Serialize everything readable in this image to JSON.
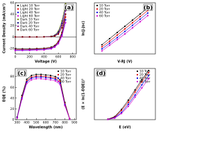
{
  "chart_data": [
    {
      "type": "line",
      "label": "(a)",
      "xlabel": "Voltage (V)",
      "ylabel": "Current Density (mA/cm²)",
      "x": [
        0,
        100,
        200,
        300,
        400,
        500,
        550,
        600,
        650,
        700
      ],
      "xlim": [
        0,
        850
      ],
      "xticks": [
        0,
        200,
        400,
        600,
        800
      ],
      "ylim": [
        -30,
        60
      ],
      "yticks": [
        -20,
        0,
        20,
        40,
        60
      ],
      "zero_line": true,
      "legend": "upper left",
      "series": [
        {
          "name": "Light 10 Torr",
          "color": "#000000",
          "values": [
            -21,
            -21,
            -20.8,
            -20.5,
            -20,
            -18,
            -15,
            -8,
            8,
            40
          ]
        },
        {
          "name": "Light 20 Torr",
          "color": "#e00000",
          "values": [
            -22,
            -22,
            -21.8,
            -21.4,
            -21,
            -19,
            -16,
            -9,
            6,
            35
          ]
        },
        {
          "name": "Light 40 Torr",
          "color": "#0000e0",
          "values": [
            -23,
            -23,
            -22.8,
            -22.5,
            -22,
            -20,
            -17,
            -11,
            3,
            30
          ]
        },
        {
          "name": "Light 60 Torr",
          "color": "#d000d0",
          "values": [
            -24,
            -24,
            -23.8,
            -23.4,
            -23,
            -21,
            -18,
            -12,
            1,
            25
          ]
        },
        {
          "name": "Dark 10 Torr",
          "color": "#708000",
          "values": [
            0,
            0,
            0,
            0,
            0.2,
            1,
            3,
            10,
            28,
            58
          ]
        },
        {
          "name": "Dark 20 Torr",
          "color": "#000080",
          "values": [
            0,
            0,
            0,
            0,
            0.2,
            0.8,
            2.5,
            8,
            24,
            52
          ]
        },
        {
          "name": "Dark 40 Torr",
          "color": "#800080",
          "values": [
            0,
            0,
            0,
            0,
            0.1,
            0.6,
            2,
            6,
            20,
            46
          ]
        },
        {
          "name": "Dark 60 Torr",
          "color": "#800000",
          "values": [
            0,
            0,
            0,
            0,
            0.1,
            0.5,
            1.5,
            5,
            16,
            40
          ]
        }
      ]
    },
    {
      "type": "line",
      "label": "(b)",
      "xlabel": "V-RJ (V)",
      "ylabel": "ln(J-Jsc)",
      "x": [
        0.1,
        0.2,
        0.3,
        0.4,
        0.5,
        0.6,
        0.7
      ],
      "xlim": [
        0,
        0.8
      ],
      "ylim": [
        -6,
        4
      ],
      "legend": "upper left",
      "series": [
        {
          "name": "10 Torr",
          "color": "#000000",
          "values": [
            -4.2,
            -3.0,
            -1.8,
            -0.6,
            0.6,
            1.8,
            3.0
          ]
        },
        {
          "name": "20 Torr",
          "color": "#e00000",
          "values": [
            -4.6,
            -3.5,
            -2.3,
            -1.1,
            0.1,
            1.3,
            2.5
          ]
        },
        {
          "name": "40 Torr",
          "color": "#0000e0",
          "values": [
            -5.0,
            -3.9,
            -2.8,
            -1.6,
            -0.4,
            0.8,
            2.0
          ]
        },
        {
          "name": "60 Torr",
          "color": "#d000d0",
          "values": [
            -5.4,
            -4.3,
            -3.2,
            -2.1,
            -0.9,
            0.3,
            1.5
          ]
        }
      ]
    },
    {
      "type": "line",
      "label": "(c)",
      "xlabel": "Wavelength (nm)",
      "ylabel": "EQE (%)",
      "x": [
        300,
        350,
        400,
        450,
        500,
        550,
        600,
        650,
        700,
        750,
        800,
        850
      ],
      "xlim": [
        280,
        920
      ],
      "xticks": [
        300,
        400,
        500,
        600,
        700,
        800,
        900
      ],
      "ylim": [
        0,
        95
      ],
      "yticks": [
        0,
        20,
        40,
        60,
        80
      ],
      "legend": "upper right",
      "series": [
        {
          "name": "10 Torr",
          "color": "#000000",
          "values": [
            5,
            45,
            75,
            82,
            84,
            84,
            83,
            82,
            80,
            74,
            32,
            2
          ]
        },
        {
          "name": "20 Torr",
          "color": "#e00000",
          "values": [
            4,
            42,
            72,
            79,
            81,
            81,
            80,
            79,
            77,
            71,
            30,
            2
          ]
        },
        {
          "name": "40 Torr",
          "color": "#0000e0",
          "values": [
            4,
            40,
            70,
            77,
            79,
            79,
            78,
            77,
            75,
            68,
            28,
            1
          ]
        },
        {
          "name": "60 Torr",
          "color": "#d000d0",
          "values": [
            3,
            38,
            67,
            74,
            76,
            76,
            75,
            74,
            72,
            65,
            26,
            1
          ]
        }
      ]
    },
    {
      "type": "line",
      "label": "(d)",
      "xlabel": "E (eV)",
      "ylabel": "(E × ln(1-EQE))²",
      "x": [
        1.4,
        1.45,
        1.5,
        1.55,
        1.6,
        1.65,
        1.7
      ],
      "xlim": [
        1.3,
        1.75
      ],
      "ylim": [
        0,
        5
      ],
      "legend": "upper right",
      "series": [
        {
          "name": "10 Torr",
          "color": "#000000",
          "values": [
            0.05,
            0.3,
            1.0,
            1.9,
            2.9,
            3.9,
            4.8
          ]
        },
        {
          "name": "20 Torr",
          "color": "#e00000",
          "values": [
            0.04,
            0.25,
            0.9,
            1.7,
            2.7,
            3.7,
            4.6
          ]
        },
        {
          "name": "40 Torr",
          "color": "#0000e0",
          "values": [
            0.03,
            0.2,
            0.7,
            1.5,
            2.4,
            3.4,
            4.3
          ]
        },
        {
          "name": "60 Torr",
          "color": "#d000d0",
          "values": [
            0.02,
            0.15,
            0.6,
            1.3,
            2.2,
            3.1,
            4.0
          ]
        }
      ]
    }
  ]
}
